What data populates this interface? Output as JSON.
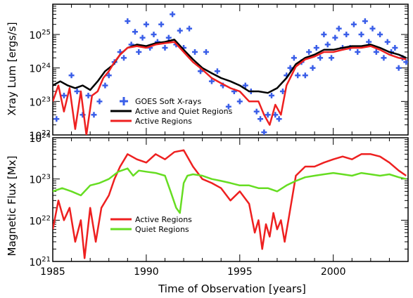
{
  "chart_data": [
    {
      "panel": "top",
      "type": "line+scatter",
      "ylabel": "Xray Lum [ergs/s]",
      "yscale": "log",
      "ylim": [
        1e+22,
        8e+25
      ],
      "xlim": [
        1985,
        2004
      ],
      "yticks": [
        {
          "value": 1e+22,
          "base": "10",
          "exp": "22"
        },
        {
          "value": 1e+23,
          "base": "10",
          "exp": "23"
        },
        {
          "value": 1e+24,
          "base": "10",
          "exp": "24"
        },
        {
          "value": 1e+25,
          "base": "10",
          "exp": "25"
        }
      ],
      "legend": {
        "position": "lower-left",
        "entries": [
          "GOES Soft X-rays",
          "Active and Quiet Regions",
          "Active Regions"
        ]
      },
      "series": [
        {
          "name": "GOES Soft X-rays",
          "style": "plus-markers",
          "color": "#3a5ee8",
          "x": [
            1985.2,
            1985.6,
            1986.0,
            1986.3,
            1986.6,
            1986.9,
            1987.2,
            1987.5,
            1987.8,
            1988.0,
            1988.3,
            1988.6,
            1988.8,
            1989.0,
            1989.2,
            1989.4,
            1989.6,
            1989.8,
            1990.0,
            1990.2,
            1990.4,
            1990.6,
            1990.8,
            1991.0,
            1991.2,
            1991.4,
            1991.6,
            1991.8,
            1992.0,
            1992.3,
            1992.6,
            1992.9,
            1993.2,
            1993.5,
            1993.8,
            1994.1,
            1994.4,
            1994.7,
            1995.0,
            1995.3,
            1995.6,
            1995.9,
            1996.1,
            1996.3,
            1996.5,
            1996.7,
            1996.9,
            1997.1,
            1997.3,
            1997.5,
            1997.7,
            1997.9,
            1998.1,
            1998.3,
            1998.5,
            1998.7,
            1998.9,
            1999.1,
            1999.3,
            1999.5,
            1999.7,
            1999.9,
            2000.1,
            2000.3,
            2000.5,
            2000.7,
            2000.9,
            2001.1,
            2001.3,
            2001.5,
            2001.7,
            2001.9,
            2002.1,
            2002.3,
            2002.5,
            2002.7,
            2002.9,
            2003.1,
            2003.3,
            2003.5,
            2003.7,
            2003.9
          ],
          "y": [
            3e+22,
            1.5e+23,
            6e+23,
            2e+23,
            4e+22,
            1.5e+23,
            4e+22,
            1e+23,
            3e+23,
            6e+23,
            1.5e+24,
            3e+24,
            2e+24,
            2.5e+25,
            5e+24,
            1.2e+25,
            3e+24,
            8e+24,
            2e+25,
            4e+24,
            1e+25,
            6e+24,
            2e+25,
            4e+24,
            8e+24,
            4e+25,
            5e+24,
            1.3e+25,
            4e+24,
            1.5e+25,
            3e+24,
            8e+23,
            3e+24,
            4e+23,
            8e+23,
            3e+23,
            7e+22,
            2e+23,
            1e+23,
            3e+23,
            2e+23,
            5e+22,
            3e+22,
            1.2e+22,
            4e+22,
            1.5e+23,
            4e+22,
            3e+22,
            2e+23,
            6e+23,
            1e+24,
            2e+24,
            6e+23,
            1.5e+24,
            6e+23,
            3e+24,
            1e+24,
            4e+24,
            2e+24,
            1e+25,
            5e+24,
            2e+24,
            8e+24,
            1.5e+25,
            4e+24,
            1e+25,
            4e+24,
            2e+25,
            3e+24,
            1e+25,
            2.5e+25,
            6e+24,
            1.5e+25,
            3e+24,
            1e+25,
            2e+24,
            6e+24,
            3e+24,
            4e+24,
            1e+24,
            2e+24,
            1.5e+24
          ]
        },
        {
          "name": "Active and Quiet Regions",
          "style": "line",
          "color": "#000000",
          "x": [
            1985.0,
            1985.4,
            1985.8,
            1986.2,
            1986.6,
            1987.0,
            1987.4,
            1987.8,
            1988.2,
            1988.6,
            1989.0,
            1989.5,
            1990.0,
            1990.5,
            1991.0,
            1991.5,
            1992.0,
            1992.5,
            1993.0,
            1993.5,
            1994.0,
            1994.5,
            1995.0,
            1995.5,
            1996.0,
            1996.5,
            1997.0,
            1997.5,
            1998.0,
            1998.5,
            1999.0,
            1999.5,
            2000.0,
            2000.5,
            2001.0,
            2001.5,
            2002.0,
            2002.5,
            2003.0,
            2003.5,
            2003.9
          ],
          "y": [
            3e+23,
            4e+23,
            3e+23,
            2.5e+23,
            3e+23,
            2.2e+23,
            4e+23,
            8e+23,
            1.2e+24,
            2.5e+24,
            4e+24,
            5e+24,
            4.5e+24,
            5.5e+24,
            6e+24,
            7e+24,
            3.5e+24,
            1.8e+24,
            1e+24,
            7e+23,
            5e+23,
            4e+23,
            3e+23,
            2e+23,
            2e+23,
            1.8e+23,
            2.5e+23,
            5e+23,
            1.3e+24,
            2e+24,
            2.5e+24,
            3.5e+24,
            3.5e+24,
            4e+24,
            4.5e+24,
            4.5e+24,
            5e+24,
            4e+24,
            3e+24,
            2.5e+24,
            2e+24
          ]
        },
        {
          "name": "Active Regions",
          "style": "line",
          "color": "#ee2020",
          "x": [
            1985.0,
            1985.3,
            1985.6,
            1985.9,
            1986.2,
            1986.5,
            1986.8,
            1987.1,
            1987.4,
            1987.7,
            1988.0,
            1988.3,
            1988.6,
            1989.0,
            1989.5,
            1990.0,
            1990.5,
            1991.0,
            1991.5,
            1992.0,
            1992.5,
            1993.0,
            1993.5,
            1994.0,
            1994.5,
            1995.0,
            1995.5,
            1996.0,
            1996.3,
            1996.6,
            1996.9,
            1997.2,
            1997.5,
            1998.0,
            1998.5,
            1999.0,
            1999.5,
            2000.0,
            2000.5,
            2001.0,
            2001.5,
            2002.0,
            2002.5,
            2003.0,
            2003.5,
            2003.9
          ],
          "y": [
            1e+23,
            3e+23,
            5e+22,
            2.5e+23,
            1.5e+22,
            2e+23,
            1e+22,
            1.5e+23,
            2e+23,
            5e+23,
            8e+23,
            1.5e+24,
            2.5e+24,
            4e+24,
            4.5e+24,
            4e+24,
            5e+24,
            5.5e+24,
            6e+24,
            3e+24,
            1.5e+24,
            9e+23,
            5e+23,
            3.5e+23,
            2.5e+23,
            2e+23,
            1e+23,
            1e+23,
            4e+22,
            2e+22,
            8e+22,
            4e+22,
            3e+23,
            1.1e+24,
            1.8e+24,
            2.2e+24,
            3e+24,
            3e+24,
            3.5e+24,
            4e+24,
            4e+24,
            4.5e+24,
            3.5e+24,
            2.5e+24,
            2e+24,
            1.8e+24
          ]
        }
      ]
    },
    {
      "panel": "bottom",
      "type": "line",
      "ylabel": "Magnetic Flux [Mx]",
      "xlabel": "Time of Observation [years]",
      "yscale": "log",
      "ylim": [
        1e+21,
        1e+24
      ],
      "xlim": [
        1985,
        2004
      ],
      "xticks": [
        "1985",
        "1990",
        "1995",
        "2000"
      ],
      "xtick_values": [
        1985,
        1990,
        1995,
        2000
      ],
      "yticks": [
        {
          "value": 1e+21,
          "base": "10",
          "exp": "21"
        },
        {
          "value": 1e+22,
          "base": "10",
          "exp": "22"
        },
        {
          "value": 1e+23,
          "base": "10",
          "exp": "23"
        },
        {
          "value": 1e+24,
          "base": "10",
          "exp": "24"
        }
      ],
      "legend": {
        "position": "lower-left",
        "entries": [
          "Active Regions",
          "Quiet Regions"
        ]
      },
      "series": [
        {
          "name": "Active Regions",
          "color": "#ee2020",
          "x": [
            1985.0,
            1985.3,
            1985.6,
            1985.9,
            1986.2,
            1986.5,
            1986.7,
            1987.0,
            1987.3,
            1987.6,
            1988.0,
            1988.3,
            1988.6,
            1989.0,
            1989.5,
            1990.0,
            1990.5,
            1991.0,
            1991.5,
            1992.0,
            1992.5,
            1993.0,
            1993.5,
            1994.0,
            1994.5,
            1995.0,
            1995.5,
            1995.8,
            1996.0,
            1996.2,
            1996.4,
            1996.6,
            1996.8,
            1997.0,
            1997.2,
            1997.4,
            1997.6,
            1998.0,
            1998.5,
            1999.0,
            1999.5,
            2000.0,
            2000.5,
            2001.0,
            2001.5,
            2002.0,
            2002.5,
            2003.0,
            2003.5,
            2003.9
          ],
          "y": [
            6e+21,
            3e+22,
            1e+22,
            2e+22,
            3e+21,
            1e+22,
            1.2e+21,
            2e+22,
            3e+21,
            2e+22,
            4e+22,
            1e+23,
            2e+23,
            4e+23,
            3e+23,
            2.5e+23,
            4e+23,
            3e+23,
            4.5e+23,
            5e+23,
            2e+23,
            1e+23,
            8e+22,
            6e+22,
            3e+22,
            5e+22,
            2.5e+22,
            5e+21,
            1e+22,
            2e+21,
            8e+21,
            4e+21,
            1.5e+22,
            6e+21,
            1e+22,
            3e+21,
            1e+22,
            1.2e+23,
            2e+23,
            2e+23,
            2.5e+23,
            3e+23,
            3.5e+23,
            3e+23,
            4e+23,
            4e+23,
            3.5e+23,
            2.5e+23,
            1.6e+23,
            1.2e+23
          ]
        },
        {
          "name": "Quiet Regions",
          "color": "#66dd22",
          "x": [
            1985.0,
            1985.5,
            1986.0,
            1986.5,
            1987.0,
            1987.5,
            1988.0,
            1988.5,
            1989.0,
            1989.3,
            1989.6,
            1990.0,
            1990.5,
            1991.0,
            1991.3,
            1991.6,
            1991.8,
            1992.0,
            1992.2,
            1992.5,
            1993.0,
            1993.5,
            1994.0,
            1994.5,
            1995.0,
            1995.5,
            1996.0,
            1996.5,
            1997.0,
            1997.5,
            1998.0,
            1998.5,
            1999.0,
            1999.5,
            2000.0,
            2000.5,
            2001.0,
            2001.5,
            2002.0,
            2002.5,
            2003.0,
            2003.5,
            2003.9
          ],
          "y": [
            5e+22,
            6e+22,
            5e+22,
            4e+22,
            7e+22,
            8e+22,
            1e+23,
            1.5e+23,
            1.8e+23,
            1.2e+23,
            1.6e+23,
            1.5e+23,
            1.4e+23,
            1.2e+23,
            5e+22,
            2e+22,
            1.5e+22,
            8e+22,
            1.2e+23,
            1.3e+23,
            1.2e+23,
            1e+23,
            9e+22,
            8e+22,
            7e+22,
            7e+22,
            6e+22,
            6e+22,
            5e+22,
            7e+22,
            9e+22,
            1.1e+23,
            1.2e+23,
            1.3e+23,
            1.4e+23,
            1.3e+23,
            1.2e+23,
            1.4e+23,
            1.3e+23,
            1.2e+23,
            1.3e+23,
            1.1e+23,
            1e+23
          ]
        }
      ]
    }
  ]
}
